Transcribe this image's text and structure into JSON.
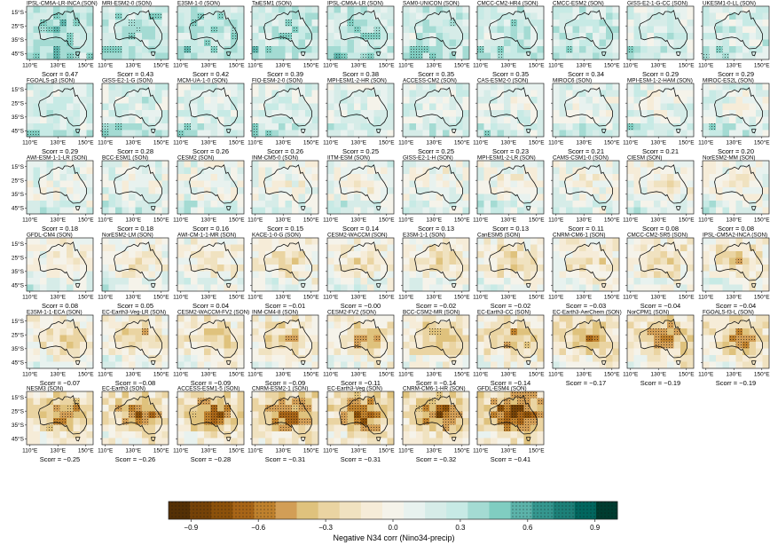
{
  "chart_data": {
    "type": "heatmap",
    "season": "SON",
    "x_ticks": [
      "110°E",
      "130°E",
      "150°E"
    ],
    "y_ticks": [
      "15°S",
      "25°S",
      "35°S",
      "45°S"
    ],
    "score_prefix": "Scorr = ",
    "panels": [
      {
        "model": "IPSL-CM6A-LR-INCA (SON)",
        "scorr": "0.47",
        "value": 0.47
      },
      {
        "model": "MRI-ESM2-0 (SON)",
        "scorr": "0.43",
        "value": 0.43
      },
      {
        "model": "E3SM-1-0 (SON)",
        "scorr": "0.42",
        "value": 0.42
      },
      {
        "model": "TaiESM1 (SON)",
        "scorr": "0.39",
        "value": 0.39
      },
      {
        "model": "IPSL-CM6A-LR (SON)",
        "scorr": "0.38",
        "value": 0.38
      },
      {
        "model": "SAM0-UNICON (SON)",
        "scorr": "0.35",
        "value": 0.35
      },
      {
        "model": "CMCC-CM2-HR4 (SON)",
        "scorr": "0.35",
        "value": 0.35
      },
      {
        "model": "CMCC-ESM2 (SON)",
        "scorr": "0.34",
        "value": 0.34
      },
      {
        "model": "GISS-E2-1-G-CC (SON)",
        "scorr": "0.29",
        "value": 0.29
      },
      {
        "model": "UKESM1-0-LL (SON)",
        "scorr": "0.29",
        "value": 0.29
      },
      {
        "model": "FGOALS-g3 (SON)",
        "scorr": "0.29",
        "value": 0.29
      },
      {
        "model": "GISS-E2-1-G (SON)",
        "scorr": "0.28",
        "value": 0.28
      },
      {
        "model": "MCM-UA-1-0 (SON)",
        "scorr": "0.26",
        "value": 0.26
      },
      {
        "model": "FIO-ESM-2-0 (SON)",
        "scorr": "0.26",
        "value": 0.26
      },
      {
        "model": "MPI-ESM1-2-HR (SON)",
        "scorr": "0.25",
        "value": 0.25
      },
      {
        "model": "ACCESS-CM2 (SON)",
        "scorr": "0.25",
        "value": 0.25
      },
      {
        "model": "CAS-ESM2-0 (SON)",
        "scorr": "0.23",
        "value": 0.23
      },
      {
        "model": "MIROC6 (SON)",
        "scorr": "0.21",
        "value": 0.21
      },
      {
        "model": "MPI-ESM-1-2-HAM (SON)",
        "scorr": "0.21",
        "value": 0.21
      },
      {
        "model": "MIROC-ES2L (SON)",
        "scorr": "0.20",
        "value": 0.2
      },
      {
        "model": "AWI-ESM-1-1-LR (SON)",
        "scorr": "0.18",
        "value": 0.18
      },
      {
        "model": "BCC-ESM1 (SON)",
        "scorr": "0.18",
        "value": 0.18
      },
      {
        "model": "CESM2 (SON)",
        "scorr": "0.16",
        "value": 0.16
      },
      {
        "model": "INM-CM5-0 (SON)",
        "scorr": "0.15",
        "value": 0.15
      },
      {
        "model": "IITM-ESM (SON)",
        "scorr": "0.14",
        "value": 0.14
      },
      {
        "model": "GISS-E2-1-H (SON)",
        "scorr": "0.13",
        "value": 0.13
      },
      {
        "model": "MPI-ESM1-2-LR (SON)",
        "scorr": "0.13",
        "value": 0.13
      },
      {
        "model": "CAMS-CSM1-0 (SON)",
        "scorr": "0.11",
        "value": 0.11
      },
      {
        "model": "CIESM (SON)",
        "scorr": "0.08",
        "value": 0.08
      },
      {
        "model": "NorESM2-MM (SON)",
        "scorr": "0.08",
        "value": 0.08
      },
      {
        "model": "GFDL-CM4 (SON)",
        "scorr": "0.08",
        "value": 0.08
      },
      {
        "model": "NorESM2-LM (SON)",
        "scorr": "0.05",
        "value": 0.05
      },
      {
        "model": "AWI-CM-1-1-MR (SON)",
        "scorr": "0.04",
        "value": 0.04
      },
      {
        "model": "KACE-1-0-G (SON)",
        "scorr": "−0.01",
        "value": -0.01
      },
      {
        "model": "CESM2-WACCM (SON)",
        "scorr": "−0.00",
        "value": -0.0
      },
      {
        "model": "E3SM-1-1 (SON)",
        "scorr": "−0.02",
        "value": -0.02
      },
      {
        "model": "CanESM5 (SON)",
        "scorr": "−0.02",
        "value": -0.02
      },
      {
        "model": "CNRM-CM6-1 (SON)",
        "scorr": "−0.03",
        "value": -0.03
      },
      {
        "model": "CMCC-CM2-SR5 (SON)",
        "scorr": "−0.04",
        "value": -0.04
      },
      {
        "model": "IPSL-CM5A2-INCA (SON)",
        "scorr": "−0.04",
        "value": -0.04
      },
      {
        "model": "E3SM-1-1-ECA (SON)",
        "scorr": "−0.07",
        "value": -0.07
      },
      {
        "model": "EC-Earth3-Veg-LR (SON)",
        "scorr": "−0.08",
        "value": -0.08
      },
      {
        "model": "CESM2-WACCM-FV2 (SON)",
        "scorr": "−0.09",
        "value": -0.09
      },
      {
        "model": "INM-CM4-8 (SON)",
        "scorr": "−0.09",
        "value": -0.09
      },
      {
        "model": "CESM2-FV2 (SON)",
        "scorr": "−0.11",
        "value": -0.11
      },
      {
        "model": "BCC-CSM2-MR (SON)",
        "scorr": "−0.14",
        "value": -0.14
      },
      {
        "model": "EC-Earth3-CC (SON)",
        "scorr": "−0.14",
        "value": -0.14
      },
      {
        "model": "EC-Earth3-AerChem (SON)",
        "scorr": "−0.17",
        "value": -0.17
      },
      {
        "model": "NorCPM1 (SON)",
        "scorr": "−0.19",
        "value": -0.19
      },
      {
        "model": "FGOALS-f3-L (SON)",
        "scorr": "−0.19",
        "value": -0.19
      },
      {
        "model": "NESM3 (SON)",
        "scorr": "−0.25",
        "value": -0.25
      },
      {
        "model": "EC-Earth3 (SON)",
        "scorr": "−0.26",
        "value": -0.26
      },
      {
        "model": "ACCESS-ESM1-5 (SON)",
        "scorr": "−0.28",
        "value": -0.28
      },
      {
        "model": "CNRM-ESM2-1 (SON)",
        "scorr": "−0.31",
        "value": -0.31
      },
      {
        "model": "EC-Earth3-Veg (SON)",
        "scorr": "−0.31",
        "value": -0.31
      },
      {
        "model": "CNRM-CM6-1-HR (SON)",
        "scorr": "−0.32",
        "value": -0.32
      },
      {
        "model": "GFDL-ESM4 (SON)",
        "scorr": "−0.41",
        "value": -0.41
      }
    ],
    "colorbar": {
      "label": "Negative N34 corr (Nino34-precip)",
      "range": [
        -1.0,
        1.0
      ],
      "ticks": [
        {
          "value": -0.9,
          "label": "−0.9"
        },
        {
          "value": -0.6,
          "label": "−0.6"
        },
        {
          "value": -0.3,
          "label": "−0.3"
        },
        {
          "value": 0.0,
          "label": "0.0"
        },
        {
          "value": 0.3,
          "label": "0.3"
        },
        {
          "value": 0.6,
          "label": "0.6"
        },
        {
          "value": 0.9,
          "label": "0.9"
        }
      ],
      "colors": [
        "#543005",
        "#754207",
        "#8c510a",
        "#a86517",
        "#bf812d",
        "#d29e56",
        "#dfc27d",
        "#ead4a2",
        "#f0e2c0",
        "#f6ecd8",
        "#f5f3ea",
        "#e8f2ef",
        "#d6ece8",
        "#c7eae5",
        "#a4dbd3",
        "#80cdc1",
        "#5cb3aa",
        "#35978f",
        "#1d8078",
        "#01665e",
        "#003c30"
      ],
      "hatched_extremes": true
    }
  }
}
